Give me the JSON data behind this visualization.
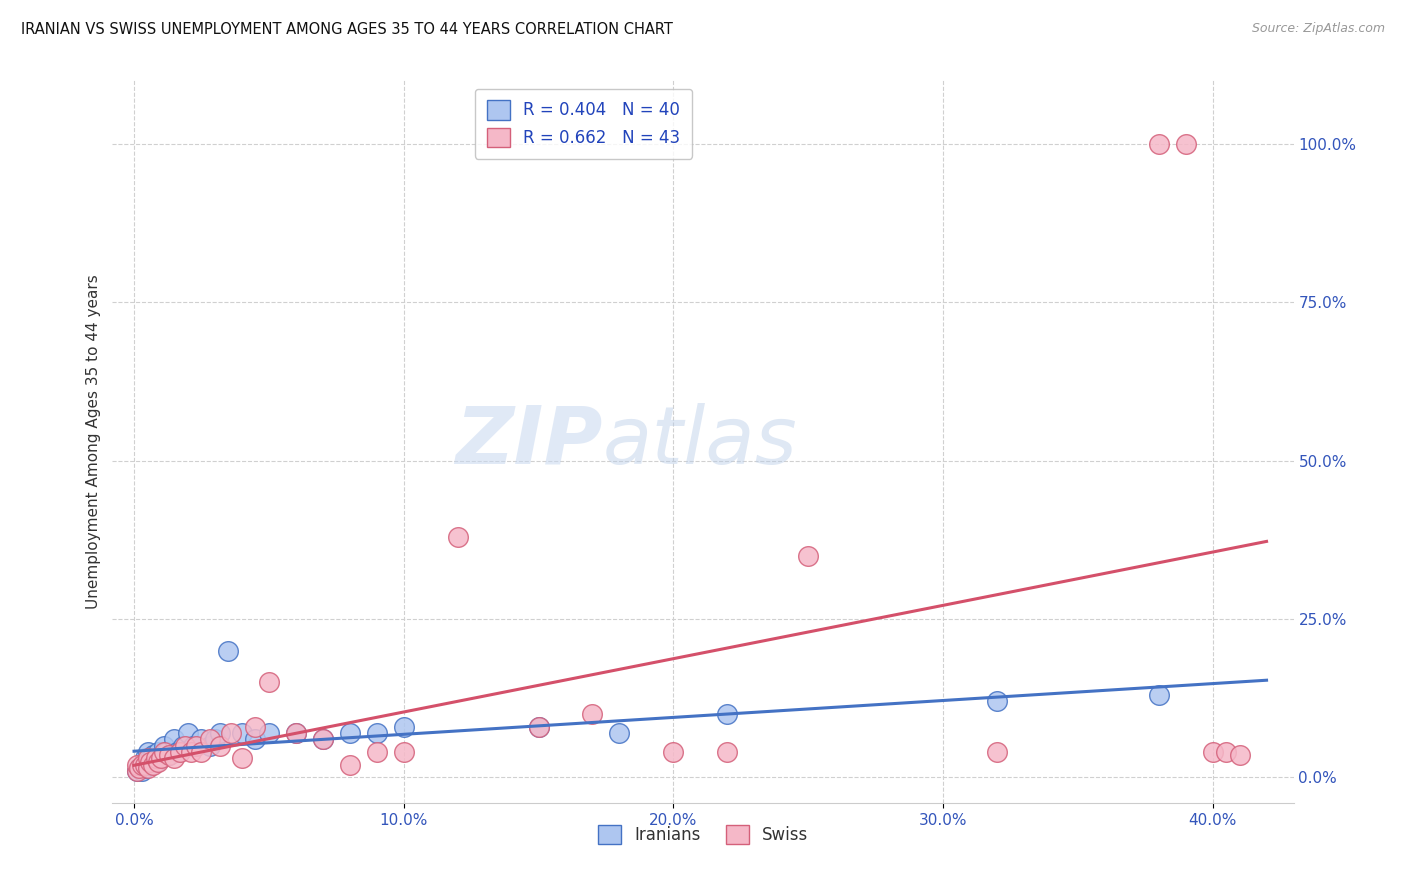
{
  "title": "IRANIAN VS SWISS UNEMPLOYMENT AMONG AGES 35 TO 44 YEARS CORRELATION CHART",
  "source": "Source: ZipAtlas.com",
  "xlabel_ticks": [
    "0.0%",
    "10.0%",
    "20.0%",
    "30.0%",
    "40.0%"
  ],
  "xlabel_tick_vals": [
    0.0,
    0.1,
    0.2,
    0.3,
    0.4
  ],
  "ylabel": "Unemployment Among Ages 35 to 44 years",
  "ylabel_ticks": [
    "0.0%",
    "25.0%",
    "50.0%",
    "75.0%",
    "100.0%"
  ],
  "ylabel_tick_vals": [
    0.0,
    0.25,
    0.5,
    0.75,
    1.0
  ],
  "xlim": [
    -0.008,
    0.43
  ],
  "ylim": [
    -0.04,
    1.1
  ],
  "iranian_color": "#aec6f0",
  "iranian_edge_color": "#4472c4",
  "swiss_color": "#f5b8c8",
  "swiss_edge_color": "#d4607a",
  "iranian_line_color": "#4472c4",
  "swiss_line_color": "#d4506a",
  "legend_iranian_label": "R = 0.404   N = 40",
  "legend_swiss_label": "R = 0.662   N = 43",
  "legend_label_iranians": "Iranians",
  "legend_label_swiss": "Swiss",
  "background_color": "#ffffff",
  "grid_color": "#d0d0d0",
  "iranian_x": [
    0.001,
    0.002,
    0.003,
    0.003,
    0.004,
    0.004,
    0.005,
    0.005,
    0.006,
    0.006,
    0.007,
    0.008,
    0.009,
    0.01,
    0.011,
    0.012,
    0.013,
    0.015,
    0.016,
    0.018,
    0.02,
    0.022,
    0.025,
    0.028,
    0.03,
    0.032,
    0.035,
    0.04,
    0.045,
    0.05,
    0.06,
    0.07,
    0.08,
    0.09,
    0.1,
    0.15,
    0.18,
    0.22,
    0.32,
    0.38
  ],
  "iranian_y": [
    0.01,
    0.015,
    0.01,
    0.02,
    0.015,
    0.03,
    0.02,
    0.04,
    0.03,
    0.02,
    0.035,
    0.025,
    0.04,
    0.03,
    0.05,
    0.04,
    0.035,
    0.06,
    0.04,
    0.05,
    0.07,
    0.05,
    0.06,
    0.05,
    0.06,
    0.07,
    0.2,
    0.07,
    0.06,
    0.07,
    0.07,
    0.06,
    0.07,
    0.07,
    0.08,
    0.08,
    0.07,
    0.1,
    0.12,
    0.13
  ],
  "swiss_x": [
    0.001,
    0.001,
    0.002,
    0.003,
    0.004,
    0.005,
    0.005,
    0.006,
    0.007,
    0.008,
    0.009,
    0.01,
    0.011,
    0.013,
    0.015,
    0.017,
    0.019,
    0.021,
    0.023,
    0.025,
    0.028,
    0.032,
    0.036,
    0.04,
    0.045,
    0.05,
    0.06,
    0.07,
    0.08,
    0.09,
    0.1,
    0.12,
    0.15,
    0.17,
    0.2,
    0.22,
    0.25,
    0.32,
    0.38,
    0.39,
    0.4,
    0.405,
    0.41
  ],
  "swiss_y": [
    0.01,
    0.02,
    0.015,
    0.02,
    0.02,
    0.015,
    0.03,
    0.025,
    0.02,
    0.03,
    0.025,
    0.03,
    0.04,
    0.035,
    0.03,
    0.04,
    0.05,
    0.04,
    0.05,
    0.04,
    0.06,
    0.05,
    0.07,
    0.03,
    0.08,
    0.15,
    0.07,
    0.06,
    0.02,
    0.04,
    0.04,
    0.38,
    0.08,
    0.1,
    0.04,
    0.04,
    0.35,
    0.04,
    1.0,
    1.0,
    0.04,
    0.04,
    0.035
  ]
}
